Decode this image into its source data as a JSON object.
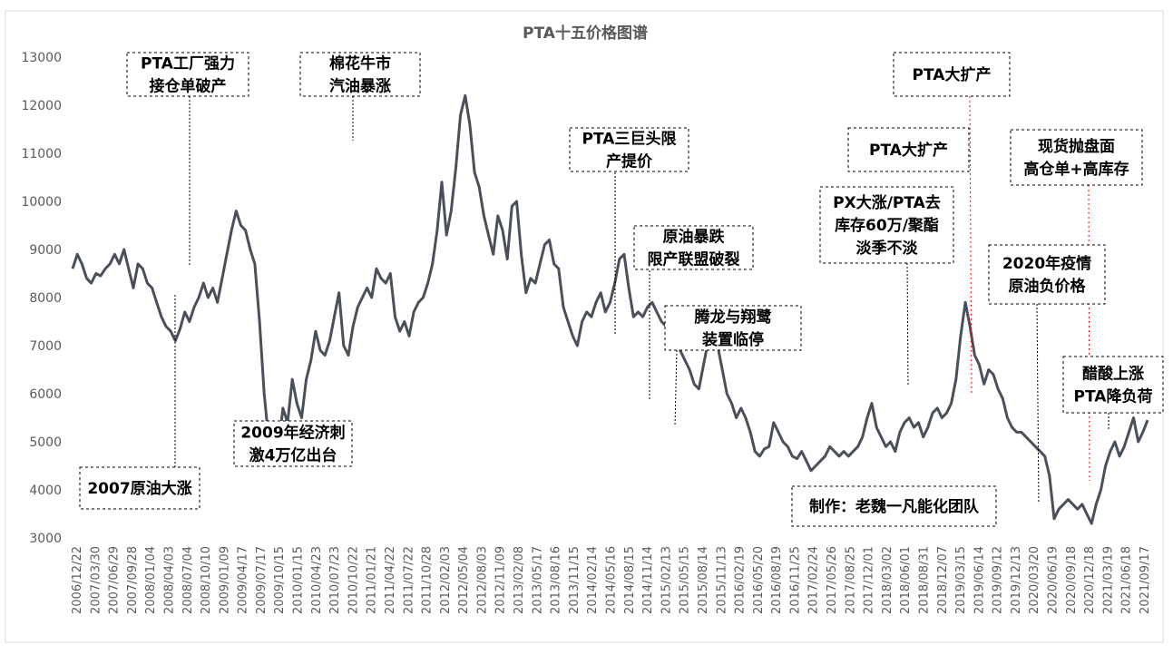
{
  "chart_data": {
    "type": "line",
    "title": "PTA十五价格图谱",
    "ylim": [
      3000,
      13000
    ],
    "yticks": [
      "3000",
      "4000",
      "5000",
      "6000",
      "7000",
      "8000",
      "9000",
      "10000",
      "11000",
      "12000",
      "13000"
    ],
    "xticks": [
      "2006/12/22",
      "2007/03/30",
      "2007/06/29",
      "2007/09/28",
      "2008/01/04",
      "2008/04/03",
      "2008/07/04",
      "2008/10/10",
      "2009/01/09",
      "2009/04/17",
      "2009/07/17",
      "2009/10/15",
      "2010/01/15",
      "2010/04/23",
      "2010/07/23",
      "2010/10/22",
      "2011/01/21",
      "2011/04/22",
      "2011/07/22",
      "2011/10/28",
      "2012/02/03",
      "2012/05/04",
      "2012/08/03",
      "2012/11/09",
      "2013/02/08",
      "2013/05/17",
      "2013/08/16",
      "2013/11/15",
      "2014/02/14",
      "2014/05/16",
      "2014/08/15",
      "2014/11/14",
      "2015/02/13",
      "2015/05/15",
      "2015/08/14",
      "2015/11/13",
      "2016/02/19",
      "2016/05/20",
      "2016/08/19",
      "2016/11/25",
      "2017/02/24",
      "2017/05/26",
      "2017/08/25",
      "2017/12/01",
      "2018/03/02",
      "2018/06/01",
      "2018/08/31",
      "2018/12/07",
      "2019/03/15",
      "2019/06/14",
      "2019/09/12",
      "2019/12/13",
      "2020/03/20",
      "2020/06/19",
      "2020/09/18",
      "2020/12/18",
      "2021/03/19",
      "2021/06/18",
      "2021/09/17"
    ],
    "series": [
      {
        "values": [
          8600,
          8900,
          8700,
          8400,
          8300,
          8500,
          8450,
          8600,
          8700,
          8900,
          8700,
          9000,
          8600,
          8200,
          8700,
          8600,
          8300,
          8200,
          7900,
          7600,
          7400,
          7300,
          7100,
          7350,
          7700,
          7500,
          7800,
          8000,
          8300,
          8000,
          8200,
          7900,
          8400,
          8900,
          9400,
          9800,
          9500,
          9400,
          9000,
          8700,
          7500,
          6000,
          5000,
          4500,
          4800,
          5700,
          5400,
          6300,
          5800,
          5500,
          6300,
          6700,
          7300,
          6900,
          6800,
          7100,
          7600,
          8100,
          7000,
          6800,
          7400,
          7800,
          8000,
          8200,
          8000,
          8600,
          8400,
          8300,
          8500,
          7600,
          7300,
          7500,
          7200,
          7700,
          7900,
          8000,
          8300,
          8700,
          9400,
          10400,
          9300,
          9800,
          10700,
          11800,
          12200,
          11600,
          10600,
          10300,
          9700,
          9300,
          8900,
          9700,
          9400,
          8800,
          9900,
          10000,
          8900,
          8100,
          8400,
          8300,
          8700,
          9100,
          9200,
          8700,
          8600,
          7800,
          7500,
          7200,
          7000,
          7500,
          7700,
          7600,
          7900,
          8100,
          7700,
          7900,
          8300,
          8800,
          8900,
          8200,
          7600,
          7700,
          7600,
          7800,
          7900,
          7700,
          7500,
          7400,
          7500,
          7200,
          6900,
          6700,
          6500,
          6200,
          6100,
          6600,
          7100,
          7300,
          7000,
          6500,
          6000,
          5800,
          5500,
          5700,
          5500,
          5200,
          4800,
          4700,
          4850,
          4900,
          5400,
          5200,
          5000,
          4900,
          4700,
          4650,
          4800,
          4600,
          4400,
          4500,
          4600,
          4700,
          4900,
          4800,
          4700,
          4800,
          4700,
          4800,
          4900,
          5100,
          5500,
          5800,
          5300,
          5100,
          4900,
          5000,
          4800,
          5200,
          5400,
          5500,
          5300,
          5400,
          5100,
          5300,
          5600,
          5700,
          5500,
          5600,
          5800,
          6300,
          7200,
          7900,
          7400,
          6800,
          6600,
          6200,
          6500,
          6400,
          6100,
          5900,
          5500,
          5300,
          5200,
          5200,
          5100,
          5000,
          4900,
          4800,
          4700,
          4300,
          3400,
          3600,
          3700,
          3800,
          3700,
          3600,
          3700,
          3500,
          3300,
          3700,
          4000,
          4500,
          4800,
          5000,
          4700,
          4900,
          5200,
          5500,
          5000,
          5200,
          5450
        ]
      }
    ],
    "annotations": {
      "a1": {
        "lines": [
          "PTA工厂强力",
          "接仓单破产"
        ]
      },
      "a2": {
        "lines": [
          "棉花牛市",
          "汽油暴涨"
        ]
      },
      "a3": {
        "lines": [
          "PTA大扩产"
        ]
      },
      "a4": {
        "lines": [
          "PTA三巨头限",
          "产提价"
        ]
      },
      "a5": {
        "lines": [
          "PTA大扩产"
        ]
      },
      "a6": {
        "lines": [
          "现货抛盘面",
          "高仓单+高库存"
        ]
      },
      "a7": {
        "lines": [
          "PX大涨/PTA去",
          "库存60万/聚酯",
          "淡季不淡"
        ]
      },
      "a8": {
        "lines": [
          "原油暴跌",
          "限产联盟破裂"
        ]
      },
      "a9": {
        "lines": [
          "2020年疫情",
          "原油负价格"
        ]
      },
      "a10": {
        "lines": [
          "腾龙与翔鹭",
          "装置临停"
        ]
      },
      "a11": {
        "lines": [
          "醋酸上涨",
          "PTA降负荷"
        ]
      },
      "a12": {
        "lines": [
          "2009年经济刺",
          "激4万亿出台"
        ]
      },
      "a13": {
        "lines": [
          "2007原油大涨"
        ]
      },
      "a14": {
        "lines": [
          "制作：老魏一凡能化团队"
        ]
      }
    },
    "colors": {
      "series": "#4a505a",
      "lead_red": "#ff0000",
      "lead_black": "#000000"
    },
    "grid": false,
    "legend": "none"
  }
}
